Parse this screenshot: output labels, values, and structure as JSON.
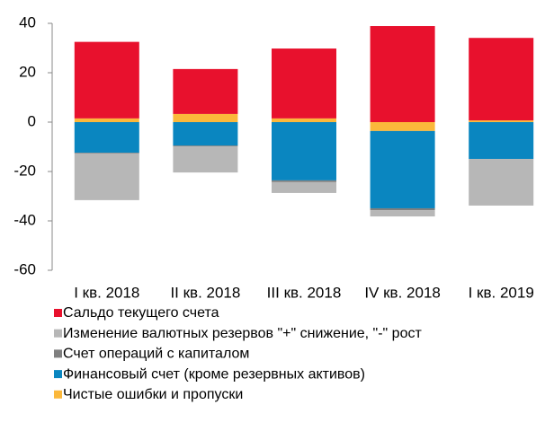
{
  "chart_data": {
    "type": "stacked_bar",
    "categories": [
      "I кв. 2018",
      "II кв. 2018",
      "III кв. 2018",
      "IV кв. 2018",
      "I кв. 2019"
    ],
    "series": [
      {
        "name": "Сальдо текущего счета",
        "color": "#e8112d",
        "values": [
          31,
          18.2,
          28.3,
          38.9,
          33.4
        ]
      },
      {
        "name": "Изменение валютных резервов \"+\" снижение, \"-\" рост",
        "color": "#b7b7b7",
        "values": [
          -18.9,
          -10.5,
          -4.4,
          -2.5,
          -18.8
        ]
      },
      {
        "name": "Счет операций с капиталом",
        "color": "#7f7f7f",
        "values": [
          -0.3,
          -0.4,
          -0.7,
          -0.8,
          -0.1
        ]
      },
      {
        "name": "Финансовый счет (кроме резервных активов)",
        "color": "#0a86c0",
        "values": [
          -12.4,
          -9.5,
          -23.6,
          -31.3,
          -14.9
        ]
      },
      {
        "name": "Чистые ошибки и пропуски",
        "color": "#fbb83b",
        "values": [
          1.5,
          3.3,
          1.5,
          -3.6,
          0.7
        ]
      }
    ],
    "ylim": [
      -60,
      40
    ],
    "yticks": [
      -60,
      -40,
      -20,
      0,
      20,
      40
    ],
    "grid": false
  }
}
